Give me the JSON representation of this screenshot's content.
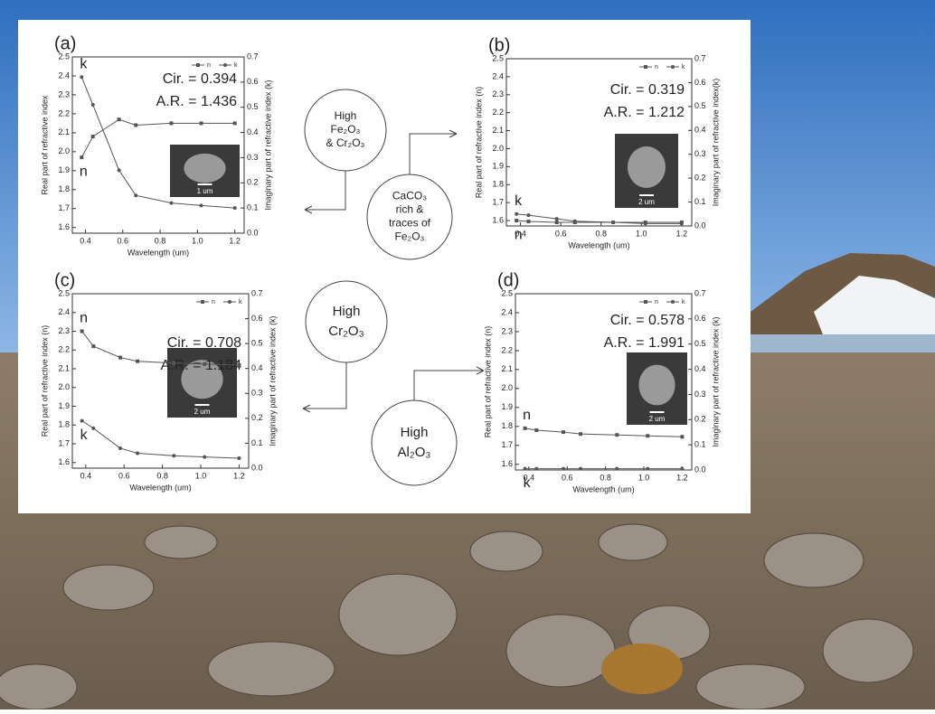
{
  "chart_data": [
    {
      "type": "line",
      "title": "(a)",
      "x": [
        0.38,
        0.44,
        0.58,
        0.67,
        0.86,
        1.02,
        1.2
      ],
      "series": [
        {
          "name": "n",
          "color": "#555555",
          "marker": "square",
          "values": [
            1.97,
            2.08,
            2.17,
            2.14,
            2.15,
            2.15,
            2.15
          ]
        },
        {
          "name": "k",
          "color": "#555555",
          "marker": "circle",
          "axis": "y2",
          "values": [
            0.62,
            0.51,
            0.25,
            0.15,
            0.12,
            0.11,
            0.1
          ]
        }
      ],
      "xlabel": "Wavelength (um)",
      "ylabel": "Real part of refractive index",
      "y2label": "Imaginary part of refractive index (k)",
      "xlim": [
        0.33,
        1.25
      ],
      "xticks": [
        0.4,
        0.6,
        0.8,
        {
          "value": 1,
          "label": "1.0"
        },
        1.2
      ],
      "ylim": [
        1.57,
        2.5
      ],
      "yticks": [
        1.6,
        1.7,
        1.8,
        1.9,
        {
          "value": 2,
          "label": "2.0"
        },
        2.1,
        2.2,
        2.3,
        2.4,
        2.5
      ],
      "y2lim": [
        0,
        0.7
      ],
      "y2ticks": [
        {
          "value": 0,
          "label": "0.0"
        },
        0.1,
        0.2,
        0.3,
        0.4,
        0.5,
        0.6,
        0.7
      ],
      "annotations": [
        "Cir. = 0.394",
        "A.R. = 1.436"
      ],
      "inset_scale": "1 um"
    },
    {
      "type": "line",
      "title": "(b)",
      "x": [
        0.38,
        0.44,
        0.58,
        0.67,
        0.86,
        1.02,
        1.2
      ],
      "series": [
        {
          "name": "n",
          "color": "#555555",
          "marker": "square",
          "values": [
            1.6,
            1.595,
            1.59,
            1.59,
            1.59,
            1.59,
            1.59
          ]
        },
        {
          "name": "k",
          "color": "#555555",
          "marker": "circle",
          "axis": "y2",
          "values": [
            0.05,
            0.045,
            0.03,
            0.02,
            0.015,
            0.01,
            0.01
          ]
        }
      ],
      "xlabel": "Wavelength (um)",
      "ylabel": "Real part of refractive index (n)",
      "y2label": "Imaginary part of refractive index(k)",
      "xlim": [
        0.33,
        1.25
      ],
      "xticks": [
        0.4,
        0.6,
        0.8,
        {
          "value": 1,
          "label": "1.0"
        },
        1.2
      ],
      "ylim": [
        1.57,
        2.5
      ],
      "yticks": [
        1.6,
        1.7,
        1.8,
        1.9,
        {
          "value": 2,
          "label": "2.0"
        },
        2.1,
        2.2,
        2.3,
        2.4,
        2.5
      ],
      "y2lim": [
        0,
        0.7
      ],
      "y2ticks": [
        {
          "value": 0,
          "label": "0.0"
        },
        0.1,
        0.2,
        0.3,
        0.4,
        0.5,
        0.6,
        0.7
      ],
      "annotations": [
        "Cir. = 0.319",
        "A.R. = 1.212"
      ],
      "inset_scale": "2 um"
    },
    {
      "type": "line",
      "title": "(c)",
      "x": [
        0.38,
        0.44,
        0.58,
        0.67,
        0.86,
        1.02,
        1.2
      ],
      "series": [
        {
          "name": "n",
          "color": "#555555",
          "marker": "square",
          "values": [
            2.3,
            2.22,
            2.16,
            2.14,
            2.13,
            2.125,
            2.12
          ]
        },
        {
          "name": "k",
          "color": "#555555",
          "marker": "circle",
          "axis": "y2",
          "values": [
            0.19,
            0.16,
            0.08,
            0.06,
            0.05,
            0.045,
            0.04
          ]
        }
      ],
      "xlabel": "Wavelength (um)",
      "ylabel": "Real part of refractive index (n)",
      "y2label": "Imaginary part of refractive index (k)",
      "xlim": [
        0.33,
        1.25
      ],
      "xticks": [
        0.4,
        0.6,
        0.8,
        {
          "value": 1,
          "label": "1.0"
        },
        1.2
      ],
      "ylim": [
        1.57,
        2.5
      ],
      "yticks": [
        1.6,
        1.7,
        1.8,
        1.9,
        {
          "value": 2,
          "label": "2.0"
        },
        2.1,
        2.2,
        2.3,
        2.4,
        2.5
      ],
      "y2lim": [
        0,
        0.7
      ],
      "y2ticks": [
        {
          "value": 0,
          "label": "0.0"
        },
        0.1,
        0.2,
        0.3,
        0.4,
        0.5,
        0.6,
        0.7
      ],
      "annotations": [
        "Cir. = 0.708",
        "A.R. = 1.184"
      ],
      "inset_scale": "2 um"
    },
    {
      "type": "line",
      "title": "(d)",
      "x": [
        0.38,
        0.44,
        0.58,
        0.67,
        0.86,
        1.02,
        1.2
      ],
      "series": [
        {
          "name": "n",
          "color": "#555555",
          "marker": "square",
          "values": [
            1.79,
            1.78,
            1.77,
            1.76,
            1.755,
            1.75,
            1.745
          ]
        },
        {
          "name": "k",
          "color": "#555555",
          "marker": "circle",
          "axis": "y2",
          "values": [
            0.005,
            0.005,
            0.005,
            0.005,
            0.005,
            0.005,
            0.005
          ]
        }
      ],
      "xlabel": "Wavelength (um)",
      "ylabel": "Real part of refractive index (n)",
      "y2label": "Imaginary part of refractive index (k)",
      "xlim": [
        0.33,
        1.25
      ],
      "xticks": [
        0.4,
        0.6,
        0.8,
        {
          "value": 1,
          "label": "1.0"
        },
        1.2
      ],
      "ylim": [
        1.57,
        2.5
      ],
      "yticks": [
        1.6,
        1.7,
        1.8,
        1.9,
        {
          "value": 2,
          "label": "2.0"
        },
        2.1,
        2.2,
        2.3,
        2.4,
        2.5
      ],
      "y2lim": [
        0,
        0.7
      ],
      "y2ticks": [
        {
          "value": 0,
          "label": "0.0"
        },
        0.1,
        0.2,
        0.3,
        0.4,
        0.5,
        0.6,
        0.7
      ],
      "annotations": [
        "Cir. = 0.578",
        "A.R. = 1.991"
      ],
      "inset_scale": "2 um"
    }
  ],
  "circles": [
    {
      "lines": [
        "High",
        "Fe₂O₃",
        "& Cr₂O₃"
      ]
    },
    {
      "lines": [
        "CaCO₃",
        "rich &",
        "traces of",
        "Fe₂O₃"
      ]
    },
    {
      "lines": [
        "High",
        "Cr₂O₃"
      ]
    },
    {
      "lines": [
        "High",
        "Al₂O₃"
      ]
    }
  ]
}
